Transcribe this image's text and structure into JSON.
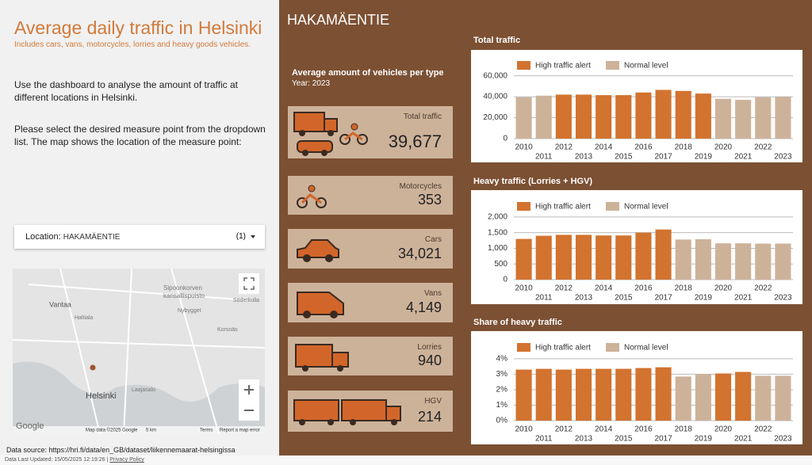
{
  "header": {
    "title": "Average daily traffic in Helsinki",
    "subtitle": "Includes cars, vans, motorcycles, lorries and heavy goods vehicles."
  },
  "intro": [
    "Use the dashboard to analyse the amount of traffic at different locations in Helsinki.",
    "Please select the desired measure point from the dropdown list. The map shows the location of the measure point:"
  ],
  "dropdown": {
    "label": "Location",
    "value": "HAKAMÄENTIE",
    "count": "(1)"
  },
  "map": {
    "labels": [
      "Vantaa",
      "Sipoonkorven",
      "kansallispuisto",
      "Nybygget",
      "Haltiala",
      "Korsnäs",
      "Söderkulla",
      "Helsinki",
      "Laajasalo"
    ],
    "attribution": [
      "Google",
      "Map data ©2025 Google",
      "5 km",
      "Terms",
      "Report a map error"
    ]
  },
  "source": "Data source: https://hri.fi/data/en_GB/dataset/liikennemaarat-helsingissa",
  "footer": {
    "updated": "Data Last Updated: 15/05/2025 12:19:26",
    "privacy": "Privacy Policy"
  },
  "location_title": "HAKAMÄENTIE",
  "vehicles": {
    "title": "Average amount of vehicles per type",
    "year": "Year: 2023",
    "cards": [
      {
        "label": "Total traffic",
        "value": "39,677"
      },
      {
        "label": "Motorcycles",
        "value": "353"
      },
      {
        "label": "Cars",
        "value": "34,021"
      },
      {
        "label": "Vans",
        "value": "4,149"
      },
      {
        "label": "Lorries",
        "value": "940"
      },
      {
        "label": "HGV",
        "value": "214"
      }
    ]
  },
  "chart_data": [
    {
      "type": "bar",
      "title": "Total traffic",
      "categories": [
        "2010",
        "2011",
        "2012",
        "2013",
        "2014",
        "2015",
        "2016",
        "2017",
        "2018",
        "2019",
        "2020",
        "2021",
        "2022",
        "2023"
      ],
      "series": [
        {
          "name": "High traffic alert",
          "color": "#d2732f",
          "values": [
            null,
            null,
            42000,
            42000,
            41500,
            41500,
            44000,
            46500,
            45500,
            43000,
            null,
            null,
            null,
            null
          ]
        },
        {
          "name": "Normal level",
          "color": "#cdb29a",
          "values": [
            39500,
            41000,
            null,
            null,
            null,
            null,
            null,
            null,
            null,
            null,
            38000,
            37000,
            39500,
            39677
          ]
        }
      ],
      "ylim": [
        0,
        65000
      ],
      "yticks": [
        0,
        {
          "value": 20000,
          "label": "20,000"
        },
        {
          "value": 40000,
          "label": "40,000"
        },
        {
          "value": 60000,
          "label": "60,000"
        }
      ],
      "grid": true,
      "legend": "top"
    },
    {
      "type": "bar",
      "title": "Heavy traffic (Lorries + HGV)",
      "categories": [
        "2010",
        "2011",
        "2012",
        "2013",
        "2014",
        "2015",
        "2016",
        "2017",
        "2018",
        "2019",
        "2020",
        "2021",
        "2022",
        "2023"
      ],
      "series": [
        {
          "name": "High traffic alert",
          "color": "#d2732f",
          "values": [
            1300,
            1400,
            1430,
            1430,
            1410,
            1410,
            1500,
            1600,
            null,
            null,
            null,
            null,
            null,
            null
          ]
        },
        {
          "name": "Normal level",
          "color": "#cdb29a",
          "values": [
            null,
            null,
            null,
            null,
            null,
            null,
            null,
            null,
            1280,
            1290,
            1160,
            1160,
            1150,
            1150
          ]
        }
      ],
      "ylim": [
        0,
        2200
      ],
      "yticks": [
        0,
        500,
        {
          "value": 1000,
          "label": "1,000"
        },
        {
          "value": 1500,
          "label": "1,500"
        },
        {
          "value": 2000,
          "label": "2,000"
        }
      ],
      "grid": true,
      "legend": "top"
    },
    {
      "type": "bar",
      "title": "Share of heavy traffic",
      "categories": [
        "2010",
        "2011",
        "2012",
        "2013",
        "2014",
        "2015",
        "2016",
        "2017",
        "2018",
        "2019",
        "2020",
        "2021",
        "2022",
        "2023"
      ],
      "series": [
        {
          "name": "High traffic alert",
          "color": "#d2732f",
          "values": [
            3.3,
            3.35,
            3.3,
            3.35,
            3.35,
            3.35,
            3.4,
            3.45,
            null,
            null,
            3.05,
            3.15,
            null,
            null
          ]
        },
        {
          "name": "Normal level",
          "color": "#cdb29a",
          "values": [
            null,
            null,
            null,
            null,
            null,
            null,
            null,
            null,
            2.85,
            3.0,
            null,
            null,
            2.9,
            2.9
          ]
        }
      ],
      "ylim": [
        0,
        4.2
      ],
      "yticks": [
        {
          "value": 0,
          "label": "0%"
        },
        {
          "value": 1,
          "label": "1%"
        },
        {
          "value": 2,
          "label": "2%"
        },
        {
          "value": 3,
          "label": "3%"
        },
        {
          "value": 4,
          "label": "4%"
        }
      ],
      "grid": true,
      "legend": "top"
    }
  ]
}
